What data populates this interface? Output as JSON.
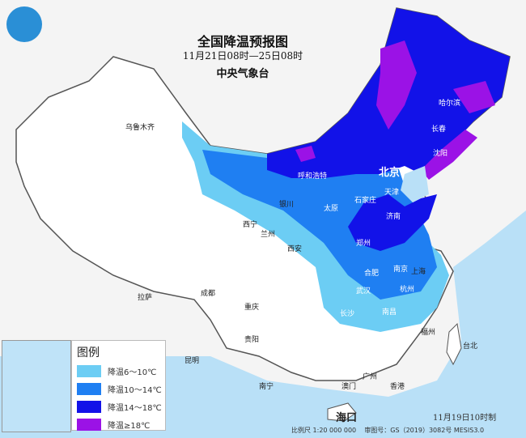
{
  "header": {
    "title": "全国降温预报图",
    "period": "11月21日08时—25日08时",
    "issuer": "中央气象台"
  },
  "colors": {
    "sea": "#b9e0f7",
    "land": "#ffffff",
    "c6_10": "#6ccdf4",
    "c10_14": "#1f7ff2",
    "c14_18": "#1212e8",
    "c18": "#9b12e6"
  },
  "legend": {
    "title": "图例",
    "items": [
      {
        "label": "降温6～10℃",
        "color": "#6ccdf4"
      },
      {
        "label": "降温10～14℃",
        "color": "#1f7ff2"
      },
      {
        "label": "降温14～18℃",
        "color": "#1212e8"
      },
      {
        "label": "降温≥18℃",
        "color": "#9b12e6"
      }
    ]
  },
  "cities": [
    {
      "name": "乌鲁木齐"
    },
    {
      "name": "拉萨"
    },
    {
      "name": "西宁"
    },
    {
      "name": "兰州"
    },
    {
      "name": "银川"
    },
    {
      "name": "呼和浩特"
    },
    {
      "name": "北京",
      "big": true
    },
    {
      "name": "天津"
    },
    {
      "name": "石家庄"
    },
    {
      "name": "太原"
    },
    {
      "name": "济南"
    },
    {
      "name": "郑州"
    },
    {
      "name": "西安"
    },
    {
      "name": "成都"
    },
    {
      "name": "重庆"
    },
    {
      "name": "贵阳"
    },
    {
      "name": "昆明"
    },
    {
      "name": "南宁"
    },
    {
      "name": "武汉"
    },
    {
      "name": "长沙"
    },
    {
      "name": "南昌"
    },
    {
      "name": "合肥"
    },
    {
      "name": "南京"
    },
    {
      "name": "上海"
    },
    {
      "name": "杭州"
    },
    {
      "name": "福州"
    },
    {
      "name": "台北"
    },
    {
      "name": "广州"
    },
    {
      "name": "香港"
    },
    {
      "name": "澳门"
    },
    {
      "name": "海口",
      "big": true
    },
    {
      "name": "哈尔滨"
    },
    {
      "name": "长春"
    },
    {
      "name": "沈阳"
    }
  ],
  "footer": {
    "scale": "比例尺 1:20 000 000",
    "approval": "审图号：GS（2019）3082号 MESIS3.0",
    "issued": "11月19日10时制"
  }
}
